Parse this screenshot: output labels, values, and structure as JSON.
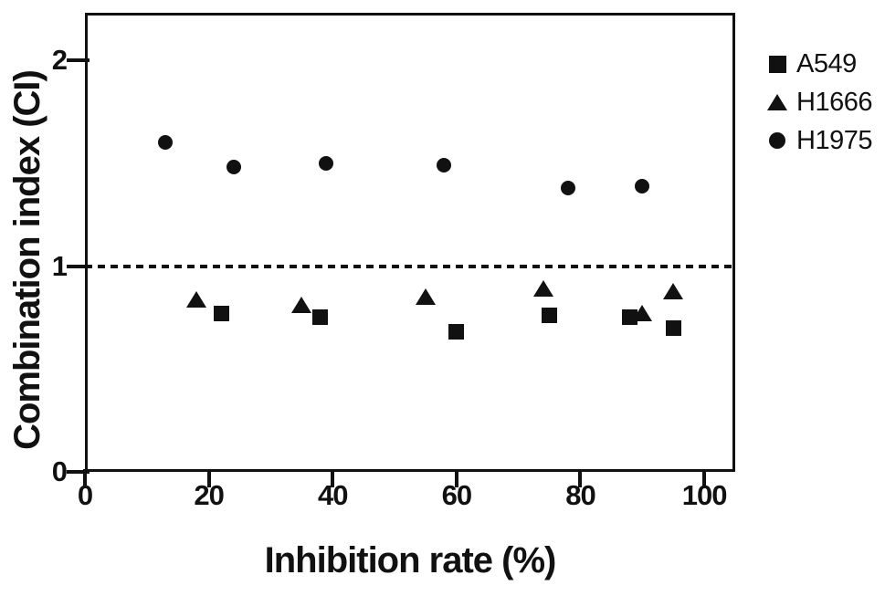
{
  "chart_data": {
    "type": "scatter",
    "title": "",
    "xlabel": "Inhibition rate (%)",
    "ylabel": "Combination index (CI)",
    "xlim": [
      0,
      105
    ],
    "ylim": [
      0,
      2.232
    ],
    "x_ticks": [
      "0",
      "20",
      "40",
      "60",
      "80",
      "100"
    ],
    "x_tick_values": [
      0,
      20,
      40,
      60,
      80,
      100
    ],
    "y_ticks": [
      "0",
      "1",
      "2"
    ],
    "y_tick_values": [
      0,
      1,
      2
    ],
    "grid": false,
    "legend_position": "right-top",
    "reference_line": {
      "y": 1,
      "style": "dashed"
    },
    "series": [
      {
        "name": "A549",
        "marker": "square",
        "points": [
          [
            22,
            0.77
          ],
          [
            38,
            0.75
          ],
          [
            60,
            0.68
          ],
          [
            75,
            0.76
          ],
          [
            88,
            0.75
          ],
          [
            95,
            0.7
          ]
        ]
      },
      {
        "name": "H1666",
        "marker": "triangle",
        "points": [
          [
            18,
            0.84
          ],
          [
            35,
            0.81
          ],
          [
            55,
            0.85
          ],
          [
            74,
            0.89
          ],
          [
            90,
            0.77
          ],
          [
            95,
            0.88
          ]
        ]
      },
      {
        "name": "H1975",
        "marker": "circle",
        "points": [
          [
            13,
            1.6
          ],
          [
            24,
            1.48
          ],
          [
            39,
            1.5
          ],
          [
            58,
            1.49
          ],
          [
            78,
            1.38
          ],
          [
            90,
            1.39
          ]
        ]
      }
    ],
    "colors": {
      "marker": "#111111",
      "axis": "#111111",
      "background": "#ffffff"
    }
  }
}
